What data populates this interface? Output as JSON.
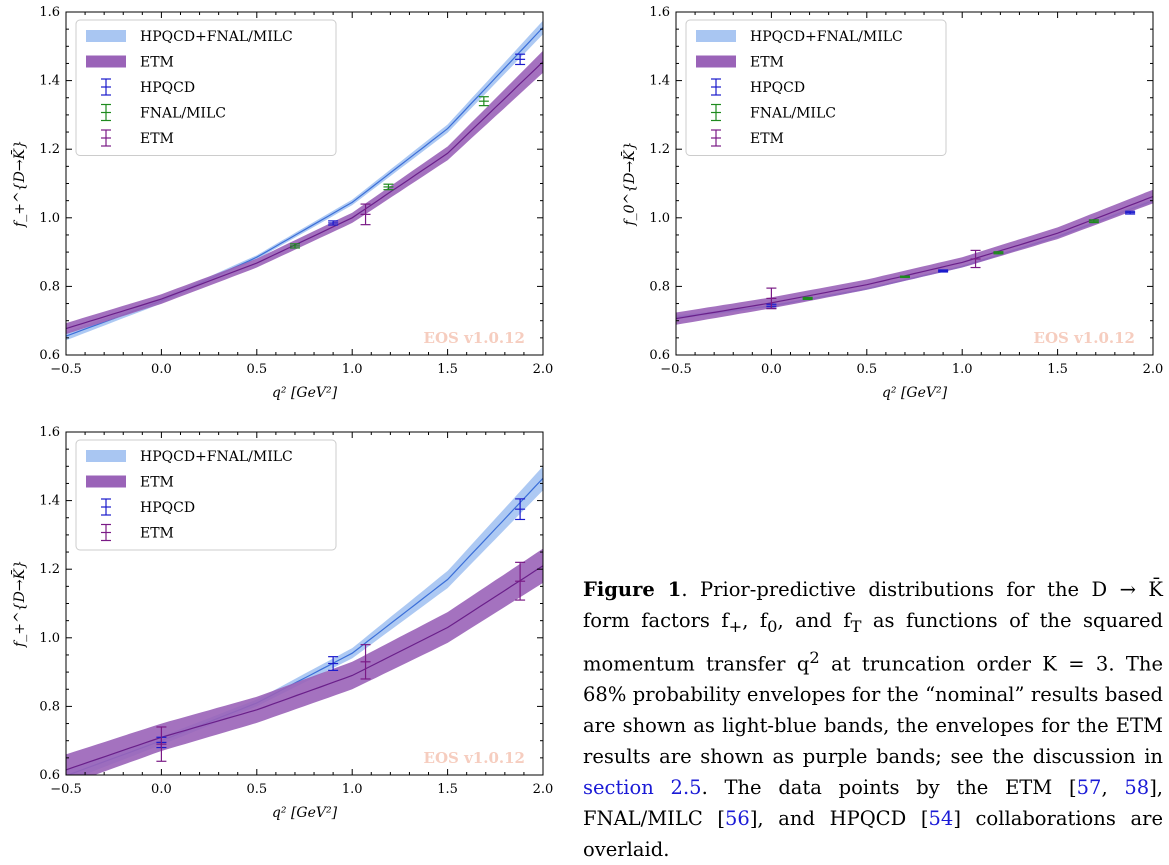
{
  "colors": {
    "nominal_band": "#a9c6f2",
    "nominal_line": "#3b6fd8",
    "etm_band": "#9a63b8",
    "etm_line": "#6a1f8a",
    "hpqcd": "#1a1acc",
    "fnal": "#1e8a1e",
    "etm_points": "#7a1a86",
    "watermark": "#f6cdbf"
  },
  "chart_data": [
    {
      "id": "a",
      "type": "line",
      "ylabel": "f_+^{D→K̄}",
      "xlabel": "q² [GeV²]",
      "xlim": [
        -0.5,
        2.0
      ],
      "ylim": [
        0.6,
        1.6
      ],
      "xticks": [
        "−0.5",
        "0.0",
        "0.5",
        "1.0",
        "1.5",
        "2.0"
      ],
      "yticks": [
        "0.6",
        "0.8",
        "1.0",
        "1.2",
        "1.4",
        "1.6"
      ],
      "legend": [
        "HPQCD+FNAL/MILC",
        "ETM",
        "HPQCD",
        "FNAL/MILC",
        "ETM"
      ],
      "legend_position": "top-left",
      "watermark": "EOS v1.0.12",
      "bands": [
        {
          "name": "HPQCD+FNAL/MILC",
          "x": [
            -0.5,
            0.0,
            0.5,
            1.0,
            1.5,
            2.0
          ],
          "center": [
            0.655,
            0.758,
            0.885,
            1.045,
            1.26,
            1.555
          ],
          "width": [
            0.012,
            0.008,
            0.006,
            0.008,
            0.012,
            0.02
          ]
        },
        {
          "name": "ETM",
          "x": [
            -0.5,
            0.0,
            0.5,
            1.0,
            1.5,
            2.0
          ],
          "center": [
            0.677,
            0.763,
            0.868,
            1.0,
            1.188,
            1.455
          ],
          "width": [
            0.016,
            0.014,
            0.013,
            0.015,
            0.02,
            0.032
          ]
        }
      ],
      "points": [
        {
          "name": "HPQCD",
          "x": [
            0.9,
            1.88
          ],
          "y": [
            0.985,
            1.462
          ],
          "err": [
            0.006,
            0.015
          ]
        },
        {
          "name": "FNAL/MILC",
          "x": [
            0.7,
            1.19,
            1.69
          ],
          "y": [
            0.918,
            1.09,
            1.34
          ],
          "err": [
            0.006,
            0.008,
            0.013
          ]
        },
        {
          "name": "ETM",
          "x": [
            1.07
          ],
          "y": [
            1.01
          ],
          "err": [
            0.03
          ]
        }
      ]
    },
    {
      "id": "b",
      "type": "line",
      "ylabel": "f_0^{D→K̄}",
      "xlabel": "q² [GeV²]",
      "xlim": [
        -0.5,
        2.0
      ],
      "ylim": [
        0.6,
        1.6
      ],
      "xticks": [
        "−0.5",
        "0.0",
        "0.5",
        "1.0",
        "1.5",
        "2.0"
      ],
      "yticks": [
        "0.6",
        "0.8",
        "1.0",
        "1.2",
        "1.4",
        "1.6"
      ],
      "legend": [
        "HPQCD+FNAL/MILC",
        "ETM",
        "HPQCD",
        "FNAL/MILC",
        "ETM"
      ],
      "legend_position": "top-left",
      "watermark": "EOS v1.0.12",
      "bands": [
        {
          "name": "HPQCD+FNAL/MILC",
          "x": [
            -0.5,
            0.0,
            0.5,
            1.0,
            1.5,
            2.0
          ],
          "center": [
            0.71,
            0.743,
            0.793,
            0.858,
            0.945,
            1.05
          ],
          "width": [
            0.006,
            0.004,
            0.003,
            0.003,
            0.004,
            0.006
          ]
        },
        {
          "name": "ETM",
          "x": [
            -0.5,
            0.0,
            0.5,
            1.0,
            1.5,
            2.0
          ],
          "center": [
            0.706,
            0.752,
            0.805,
            0.87,
            0.955,
            1.062
          ],
          "width": [
            0.018,
            0.016,
            0.015,
            0.015,
            0.017,
            0.02
          ]
        }
      ],
      "points": [
        {
          "name": "HPQCD",
          "x": [
            0.0,
            0.9,
            1.88
          ],
          "y": [
            0.742,
            0.845,
            1.015
          ],
          "err": [
            0.006,
            0.003,
            0.004
          ]
        },
        {
          "name": "FNAL/MILC",
          "x": [
            0.19,
            0.7,
            1.19,
            1.69
          ],
          "y": [
            0.765,
            0.828,
            0.898,
            0.99
          ],
          "err": [
            0.003,
            0.002,
            0.003,
            0.004
          ]
        },
        {
          "name": "ETM",
          "x": [
            0.0,
            1.07
          ],
          "y": [
            0.765,
            0.88
          ],
          "err": [
            0.03,
            0.025
          ]
        }
      ]
    },
    {
      "id": "c",
      "type": "line",
      "ylabel": "f_+^{D→K̄}",
      "xlabel": "q² [GeV²]",
      "xlim": [
        -0.5,
        2.0
      ],
      "ylim": [
        0.6,
        1.6
      ],
      "xticks": [
        "−0.5",
        "0.0",
        "0.5",
        "1.0",
        "1.5",
        "2.0"
      ],
      "yticks": [
        "0.6",
        "0.8",
        "1.0",
        "1.2",
        "1.4",
        "1.6"
      ],
      "legend": [
        "HPQCD+FNAL/MILC",
        "ETM",
        "HPQCD",
        "ETM"
      ],
      "legend_position": "top-left",
      "watermark": "EOS v1.0.12",
      "bands": [
        {
          "name": "HPQCD+FNAL/MILC",
          "x": [
            -0.5,
            0.0,
            0.5,
            1.0,
            1.5,
            2.0
          ],
          "center": [
            0.598,
            0.7,
            0.81,
            0.955,
            1.17,
            1.465
          ],
          "width": [
            0.018,
            0.012,
            0.01,
            0.015,
            0.025,
            0.035
          ]
        },
        {
          "name": "ETM",
          "x": [
            -0.5,
            0.0,
            0.5,
            1.0,
            1.5,
            2.0
          ],
          "center": [
            0.615,
            0.71,
            0.79,
            0.89,
            1.03,
            1.21
          ],
          "width": [
            0.045,
            0.04,
            0.038,
            0.04,
            0.045,
            0.05
          ]
        }
      ],
      "points": [
        {
          "name": "HPQCD",
          "x": [
            0.0,
            0.9,
            1.88
          ],
          "y": [
            0.695,
            0.925,
            1.375
          ],
          "err": [
            0.015,
            0.02,
            0.03
          ]
        },
        {
          "name": "ETM",
          "x": [
            0.0,
            1.07,
            1.88
          ],
          "y": [
            0.69,
            0.93,
            1.165
          ],
          "err": [
            0.05,
            0.05,
            0.055
          ]
        }
      ]
    }
  ],
  "caption": {
    "label": "Figure 1",
    "parts": [
      ". Prior-predictive distributions for the D → K̄ form factors f",
      "+",
      ", f",
      "0",
      ", and f",
      "T",
      " as functions of the squared momentum transfer q",
      "2",
      " at truncation order K = 3. The 68% probability envelopes for the “nominal” results based are shown as light-blue bands, the envelopes for the ETM results are shown as purple bands; see the discussion in ",
      "section 2.5",
      ". The data points by the ETM [",
      "57",
      ", ",
      "58",
      "], FNAL/MILC [",
      "56",
      "], and HPQCD [",
      "54",
      "] collaborations are overlaid."
    ]
  }
}
